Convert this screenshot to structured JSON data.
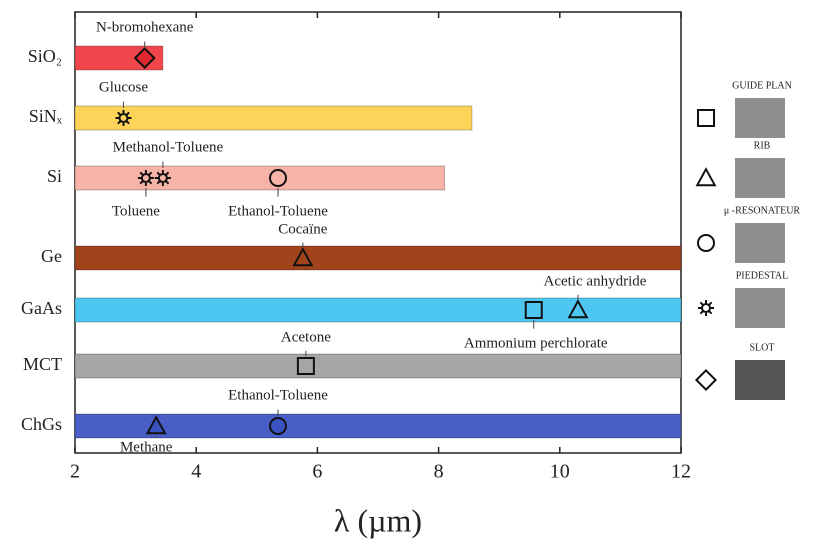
{
  "chart_data": {
    "type": "range",
    "xlabel": "λ (µm)",
    "xlim": [
      2,
      12
    ],
    "xticks": [
      2,
      4,
      6,
      8,
      10,
      12
    ],
    "bars": [
      {
        "name": "SiO₂",
        "start": 2,
        "end": 3.45,
        "color": "#f0474d",
        "points": [
          {
            "x": 3.15,
            "marker": "diamond",
            "color": "#e0282e",
            "label": "N-bromohexane"
          }
        ]
      },
      {
        "name": "SiNₓ",
        "start": 2,
        "end": 8.55,
        "color": "#fdd459",
        "points": [
          {
            "x": 2.8,
            "marker": "star",
            "label": "Glucose"
          }
        ]
      },
      {
        "name": "Si",
        "start": 2,
        "end": 8.1,
        "color": "#f8b3a7",
        "points": [
          {
            "x": 3.17,
            "marker": "star",
            "label": "Toluene"
          },
          {
            "x": 3.45,
            "marker": "star",
            "label": "Methanol-Toluene"
          },
          {
            "x": 5.35,
            "marker": "circle",
            "label": "Ethanol-Toluene"
          }
        ]
      },
      {
        "name": "Ge",
        "start": 2,
        "end": 12,
        "color": "#a1441c",
        "points": [
          {
            "x": 5.76,
            "marker": "triangle",
            "label": "Cocaïne"
          }
        ]
      },
      {
        "name": "GaAs",
        "start": 2,
        "end": 12,
        "color": "#4dc7f1",
        "points": [
          {
            "x": 9.57,
            "marker": "square",
            "label": "Ammonium perchlorate"
          },
          {
            "x": 10.3,
            "marker": "triangle",
            "label": "Acetic anhydride"
          }
        ]
      },
      {
        "name": "MCT",
        "start": 2,
        "end": 12,
        "color": "#a6a6a6",
        "points": [
          {
            "x": 5.81,
            "marker": "square",
            "label": "Acetone"
          }
        ]
      },
      {
        "name": "ChGs",
        "start": 2,
        "end": 12,
        "color": "#4a5ec7",
        "points": [
          {
            "x": 3.34,
            "marker": "triangle",
            "color": "#3a52c0",
            "label": "Methane"
          },
          {
            "x": 5.35,
            "marker": "circle",
            "color": "#3a52c0",
            "label": "Ethanol-Toluene"
          }
        ]
      }
    ],
    "legend": [
      {
        "marker": "square",
        "label": "GUIDE PLAN"
      },
      {
        "marker": "triangle",
        "label": "RIB"
      },
      {
        "marker": "circle",
        "label": "μ -RESONATEUR"
      },
      {
        "marker": "star",
        "label": "PIEDESTAL"
      },
      {
        "marker": "diamond",
        "label": "SLOT"
      }
    ]
  }
}
